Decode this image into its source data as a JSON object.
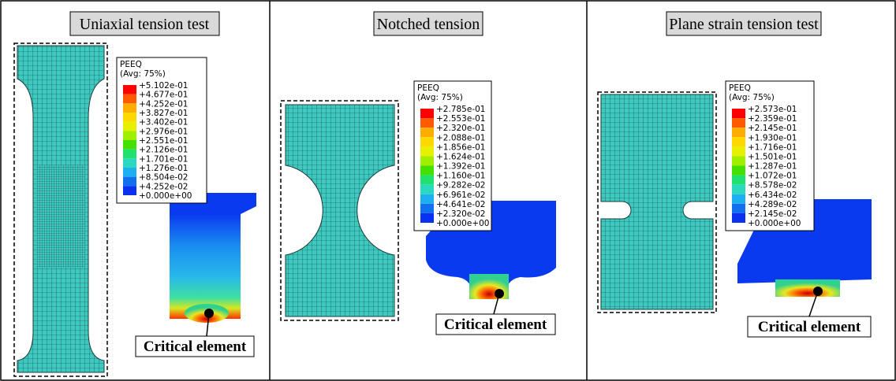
{
  "panels": [
    {
      "title": "Uniaxial tension test",
      "legend": {
        "name": "PEEQ",
        "avg": "(Avg: 75%)",
        "levels": [
          "+5.102e-01",
          "+4.677e-01",
          "+4.252e-01",
          "+3.827e-01",
          "+3.402e-01",
          "+2.976e-01",
          "+2.551e-01",
          "+2.126e-01",
          "+1.701e-01",
          "+1.276e-01",
          "+8.504e-02",
          "+4.252e-02",
          "+0.000e+00"
        ]
      },
      "callout": "Critical element"
    },
    {
      "title": "Notched tension",
      "legend": {
        "name": "PEEQ",
        "avg": "(Avg: 75%)",
        "levels": [
          "+2.785e-01",
          "+2.553e-01",
          "+2.320e-01",
          "+2.088e-01",
          "+1.856e-01",
          "+1.624e-01",
          "+1.392e-01",
          "+1.160e-01",
          "+9.282e-02",
          "+6.961e-02",
          "+4.641e-02",
          "+2.320e-02",
          "+0.000e+00"
        ]
      },
      "callout": "Critical element"
    },
    {
      "title": "Plane strain tension test",
      "legend": {
        "name": "PEEQ",
        "avg": "(Avg: 75%)",
        "levels": [
          "+2.573e-01",
          "+2.359e-01",
          "+2.145e-01",
          "+1.930e-01",
          "+1.716e-01",
          "+1.501e-01",
          "+1.287e-01",
          "+1.072e-01",
          "+8.578e-02",
          "+6.434e-02",
          "+4.289e-02",
          "+2.145e-02",
          "+0.000e+00"
        ]
      },
      "callout": "Critical element"
    }
  ]
}
